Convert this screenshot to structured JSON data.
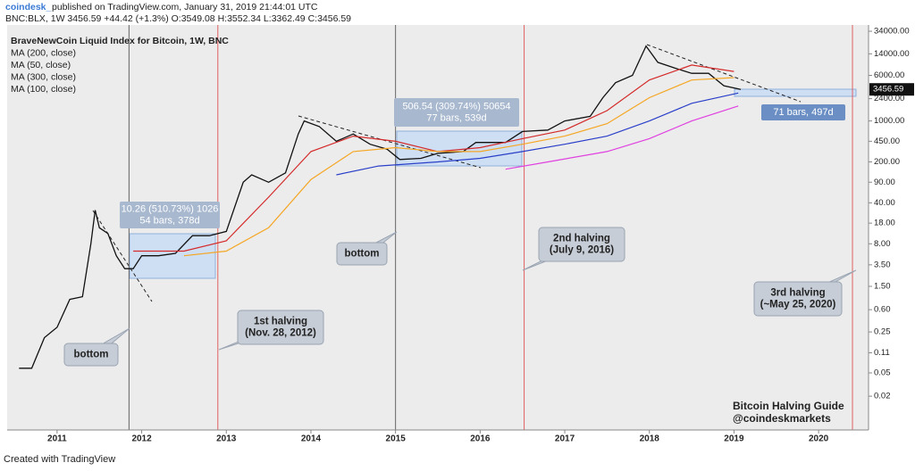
{
  "header": {
    "brand": "coindesk_",
    "published": "published on TradingView.com, January 31, 2019 21:44:01 UTC",
    "quote": "BNC:BLX, 1W  3456.59  +44.42 (+1.3%)  O:3549.08  H:3552.34  L:3362.49  C:3456.59"
  },
  "footer": "Created with TradingView",
  "chart_data": {
    "type": "line",
    "log_scale": true,
    "xlim": [
      2010.41,
      2020.59
    ],
    "xticks": [
      2011,
      2012,
      2013,
      2014,
      2015,
      2016,
      2017,
      2018,
      2019,
      2020
    ],
    "ylim": [
      0.0053,
      43500
    ],
    "yticks": [
      {
        "value": 34000,
        "label": "34000.00"
      },
      {
        "value": 14000,
        "label": "14000.00"
      },
      {
        "value": 6000,
        "label": "6000.00"
      },
      {
        "value": 2400,
        "label": "2400.00"
      },
      {
        "value": 1000,
        "label": "1000.00"
      },
      {
        "value": 450,
        "label": "450.00"
      },
      {
        "value": 200,
        "label": "200.00"
      },
      {
        "value": 90,
        "label": "90.00"
      },
      {
        "value": 40,
        "label": "40.00"
      },
      {
        "value": 18,
        "label": "18.00"
      },
      {
        "value": 8,
        "label": "8.00"
      },
      {
        "value": 3.5,
        "label": "3.50"
      },
      {
        "value": 1.5,
        "label": "1.50"
      },
      {
        "value": 0.6,
        "label": "0.60"
      },
      {
        "value": 0.25,
        "label": "0.25"
      },
      {
        "value": 0.11,
        "label": "0.11"
      },
      {
        "value": 0.05,
        "label": "0.05"
      },
      {
        "value": 0.02,
        "label": "0.02"
      }
    ],
    "series": [
      {
        "name": "BraveNewCoin Liquid Index for Bitcoin, 1W, BNC",
        "color": "#111111",
        "x": [
          2010.55,
          2010.7,
          2010.85,
          2011.0,
          2011.15,
          2011.3,
          2011.4,
          2011.45,
          2011.5,
          2011.6,
          2011.7,
          2011.8,
          2011.9,
          2012.0,
          2012.2,
          2012.4,
          2012.6,
          2012.8,
          2013.0,
          2013.2,
          2013.3,
          2013.5,
          2013.7,
          2013.85,
          2013.92,
          2014.1,
          2014.3,
          2014.5,
          2014.7,
          2014.9,
          2015.05,
          2015.3,
          2015.5,
          2015.8,
          2015.95,
          2016.3,
          2016.5,
          2016.8,
          2017.0,
          2017.3,
          2017.45,
          2017.6,
          2017.8,
          2017.96,
          2018.1,
          2018.3,
          2018.5,
          2018.7,
          2018.88,
          2019.08
        ],
        "values": [
          0.06,
          0.06,
          0.2,
          0.3,
          0.9,
          1.0,
          8,
          30,
          15,
          12,
          5,
          3,
          3,
          5,
          5,
          5.5,
          11,
          11,
          13,
          90,
          120,
          90,
          130,
          600,
          1000,
          800,
          450,
          600,
          400,
          330,
          220,
          230,
          280,
          300,
          430,
          430,
          660,
          700,
          1000,
          1200,
          2500,
          4500,
          6000,
          19000,
          10000,
          8000,
          6500,
          6500,
          4000,
          3456.59
        ]
      },
      {
        "name": "MA (200, close)",
        "color": "#2a3fc9",
        "x": [
          2014.3,
          2014.8,
          2015.5,
          2016.0,
          2016.5,
          2017.0,
          2017.5,
          2018.0,
          2018.5,
          2019.05
        ],
        "values": [
          120,
          170,
          200,
          230,
          300,
          400,
          550,
          1000,
          2000,
          3000
        ]
      },
      {
        "name": "MA (50, close)",
        "color": "#d42a2a",
        "x": [
          2011.9,
          2012.5,
          2013.0,
          2013.5,
          2014.0,
          2014.5,
          2015.0,
          2015.5,
          2016.0,
          2016.5,
          2017.0,
          2017.5,
          2018.0,
          2018.5,
          2019.0
        ],
        "values": [
          6,
          6,
          9,
          50,
          300,
          550,
          450,
          300,
          350,
          500,
          700,
          1500,
          5000,
          9000,
          7000
        ]
      },
      {
        "name": "MA (300, close)",
        "color": "#e040e0",
        "x": [
          2016.3,
          2016.8,
          2017.5,
          2018.0,
          2018.5,
          2019.05
        ],
        "values": [
          150,
          200,
          300,
          500,
          1000,
          1800
        ]
      },
      {
        "name": "MA (100, close)",
        "color": "#f5a623",
        "x": [
          2012.5,
          2013.0,
          2013.5,
          2014.0,
          2014.5,
          2015.0,
          2015.5,
          2016.0,
          2016.5,
          2017.0,
          2017.5,
          2018.0,
          2018.5,
          2019.0
        ],
        "values": [
          5,
          6,
          15,
          100,
          300,
          350,
          300,
          300,
          400,
          550,
          900,
          2500,
          5000,
          5500
        ]
      }
    ],
    "legend_order": [
      0,
      1,
      2,
      3,
      4
    ],
    "markers": [
      {
        "x": 2011.85,
        "color": "#666666"
      },
      {
        "x": 2012.9,
        "color": "#e06060"
      },
      {
        "x": 2015.0,
        "color": "#666666"
      },
      {
        "x": 2016.52,
        "color": "#e06060"
      },
      {
        "x": 2020.4,
        "color": "#e06060"
      }
    ],
    "annotations": [
      {
        "lines": [
          "bottom"
        ]
      },
      {
        "lines": [
          "1st halving",
          "(Nov. 28, 2012)"
        ]
      },
      {
        "lines": [
          "bottom"
        ]
      },
      {
        "lines": [
          "2nd halving",
          "(July 9, 2016)"
        ]
      },
      {
        "lines": [
          "3rd halving",
          "(~May 25, 2020)"
        ]
      },
      {
        "lines": [
          "10.26 (510.73%) 1026",
          "54 bars, 378d"
        ]
      },
      {
        "lines": [
          "506.54 (309.74%) 50654",
          "77 bars, 539d"
        ]
      },
      {
        "lines": [
          "71 bars, 497d"
        ]
      },
      {
        "lines": [
          "Bitcoin Halving Guide",
          "@coindeskmarkets"
        ]
      }
    ]
  }
}
